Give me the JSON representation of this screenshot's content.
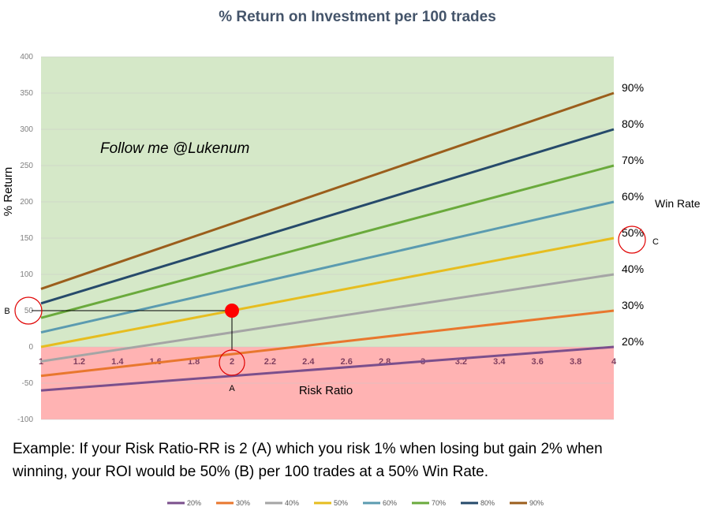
{
  "chart_data": {
    "type": "line",
    "title": "% Return on Investment per 100 trades",
    "xlabel": "Risk Ratio",
    "ylabel": "% Return",
    "xlim": [
      1,
      4
    ],
    "ylim": [
      -100,
      400
    ],
    "x_ticks": [
      "1",
      "1.2",
      "1.4",
      "1.6",
      "1.8",
      "2",
      "2.2",
      "2.4",
      "2.6",
      "2.8",
      "3",
      "3.2",
      "3.4",
      "3.6",
      "3.8",
      "4"
    ],
    "y_ticks": [
      "400",
      "350",
      "300",
      "250",
      "200",
      "150",
      "100",
      "50",
      "0",
      "-50",
      "-100"
    ],
    "series": [
      {
        "name": "20%",
        "color": "#7b4f8c",
        "end_label": "20%",
        "x": [
          1,
          4
        ],
        "y": [
          -60,
          0
        ]
      },
      {
        "name": "30%",
        "color": "#e8772e",
        "end_label": "30%",
        "x": [
          1,
          4
        ],
        "y": [
          -40,
          50
        ]
      },
      {
        "name": "40%",
        "color": "#a5a5a5",
        "end_label": "40%",
        "x": [
          1,
          4
        ],
        "y": [
          -20,
          100
        ]
      },
      {
        "name": "50%",
        "color": "#e6bd1f",
        "end_label": "50%",
        "x": [
          1,
          4
        ],
        "y": [
          0,
          150
        ]
      },
      {
        "name": "60%",
        "color": "#5b9bb0",
        "end_label": "60%",
        "x": [
          1,
          4
        ],
        "y": [
          20,
          200
        ]
      },
      {
        "name": "70%",
        "color": "#6aaa3c",
        "end_label": "70%",
        "x": [
          1,
          4
        ],
        "y": [
          40,
          250
        ]
      },
      {
        "name": "80%",
        "color": "#264a6b",
        "end_label": "80%",
        "x": [
          1,
          4
        ],
        "y": [
          60,
          300
        ]
      },
      {
        "name": "90%",
        "color": "#9b5e1c",
        "end_label": "90%",
        "x": [
          1,
          4
        ],
        "y": [
          80,
          350
        ]
      }
    ],
    "legend": [
      "20%",
      "30%",
      "40%",
      "50%",
      "60%",
      "70%",
      "80%",
      "90%"
    ],
    "legend_position": "bottom",
    "regions": [
      {
        "from": 0,
        "to": 400,
        "color": "#d5e8c8"
      },
      {
        "from": -100,
        "to": 0,
        "color": "#ffb3b3"
      }
    ],
    "highlight_point": {
      "x": 2,
      "y": 50,
      "color": "#ff0000"
    },
    "annotations": {
      "marker_a": "A",
      "marker_b": "B",
      "marker_c": "C",
      "win_rate_label": "Win Rate",
      "follow": "Follow me @Lukenum",
      "example_line1": "Example: If your Risk Ratio-RR is 2 (A) which you risk 1% when losing but gain 2% when",
      "example_line2": "winning, your ROI would be 50% (B) per 100 trades at a 50% Win Rate."
    }
  }
}
